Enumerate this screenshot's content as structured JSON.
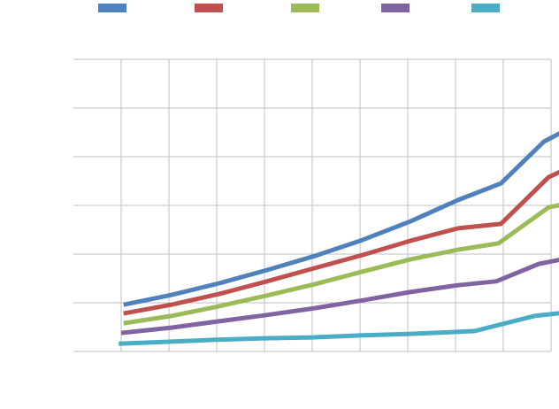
{
  "chart_data": {
    "type": "line",
    "title": "",
    "xlabel": "",
    "ylabel": "",
    "grid": true,
    "legend_position": "top",
    "ylim": [
      0,
      6
    ],
    "xlim": [
      -0.5,
      11.4
    ],
    "y_gridlines": [
      0,
      1,
      2,
      3,
      4,
      5,
      6
    ],
    "x_gridlines": [
      0,
      1,
      2,
      3,
      4,
      5,
      6,
      7,
      8,
      9,
      10
    ],
    "series": [
      {
        "name": "",
        "color": "#4f81bd",
        "points": [
          [
            0.05,
            0.96
          ],
          [
            1.05,
            1.16
          ],
          [
            2.05,
            1.4
          ],
          [
            3.05,
            1.67
          ],
          [
            4.05,
            1.96
          ],
          [
            5.05,
            2.29
          ],
          [
            6.05,
            2.67
          ],
          [
            7.05,
            3.11
          ],
          [
            7.95,
            3.45
          ],
          [
            8.85,
            4.31
          ],
          [
            9.85,
            4.82
          ]
        ]
      },
      {
        "name": "",
        "color": "#c0504d",
        "points": [
          [
            0.05,
            0.78
          ],
          [
            1.05,
            0.96
          ],
          [
            2.05,
            1.18
          ],
          [
            3.05,
            1.44
          ],
          [
            4.05,
            1.71
          ],
          [
            5.05,
            1.98
          ],
          [
            6.05,
            2.27
          ],
          [
            7.05,
            2.53
          ],
          [
            7.95,
            2.62
          ],
          [
            8.95,
            3.58
          ],
          [
            9.9,
            4.02
          ]
        ]
      },
      {
        "name": "",
        "color": "#9bbb59",
        "points": [
          [
            0.05,
            0.58
          ],
          [
            1.05,
            0.73
          ],
          [
            2.05,
            0.93
          ],
          [
            3.05,
            1.15
          ],
          [
            4.05,
            1.38
          ],
          [
            5.05,
            1.64
          ],
          [
            6.05,
            1.89
          ],
          [
            7.05,
            2.09
          ],
          [
            7.9,
            2.22
          ],
          [
            8.95,
            2.96
          ],
          [
            9.8,
            3.13
          ]
        ]
      },
      {
        "name": "",
        "color": "#8064a2",
        "points": [
          [
            0.0,
            0.38
          ],
          [
            1.05,
            0.49
          ],
          [
            2.05,
            0.62
          ],
          [
            3.05,
            0.75
          ],
          [
            4.05,
            0.89
          ],
          [
            5.05,
            1.05
          ],
          [
            6.05,
            1.22
          ],
          [
            7.05,
            1.36
          ],
          [
            7.85,
            1.44
          ],
          [
            8.75,
            1.8
          ],
          [
            9.8,
            2.0
          ]
        ]
      },
      {
        "name": "",
        "color": "#4bacc6",
        "points": [
          [
            -0.05,
            0.16
          ],
          [
            1.0,
            0.2
          ],
          [
            2.0,
            0.24
          ],
          [
            3.0,
            0.27
          ],
          [
            4.0,
            0.29
          ],
          [
            5.0,
            0.33
          ],
          [
            6.0,
            0.36
          ],
          [
            7.0,
            0.4
          ],
          [
            7.4,
            0.42
          ],
          [
            8.65,
            0.73
          ],
          [
            9.7,
            0.84
          ]
        ]
      }
    ]
  }
}
